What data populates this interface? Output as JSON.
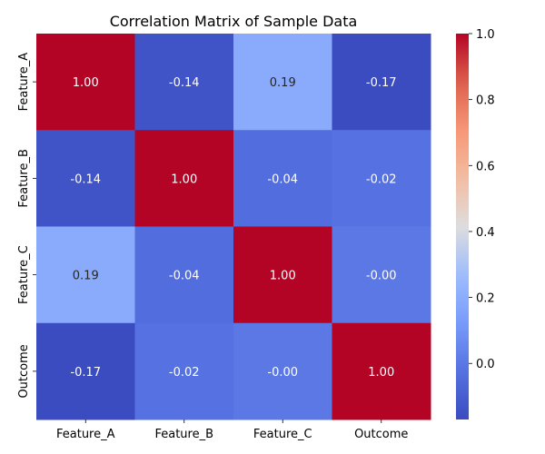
{
  "chart_data": {
    "type": "heatmap",
    "title": "Correlation Matrix of Sample Data",
    "xlabel": "",
    "ylabel": "",
    "x_categories": [
      "Feature_A",
      "Feature_B",
      "Feature_C",
      "Outcome"
    ],
    "y_categories": [
      "Feature_A",
      "Feature_B",
      "Feature_C",
      "Outcome"
    ],
    "values": [
      [
        1.0,
        -0.14,
        0.19,
        -0.17
      ],
      [
        -0.14,
        1.0,
        -0.04,
        -0.02
      ],
      [
        0.19,
        -0.04,
        1.0,
        -0.0
      ],
      [
        -0.17,
        -0.02,
        -0.0,
        1.0
      ]
    ],
    "annotations": [
      [
        "1.00",
        "-0.14",
        "0.19",
        "-0.17"
      ],
      [
        "-0.14",
        "1.00",
        "-0.04",
        "-0.02"
      ],
      [
        "0.19",
        "-0.04",
        "1.00",
        "-0.00"
      ],
      [
        "-0.17",
        "-0.02",
        "-0.00",
        "1.00"
      ]
    ],
    "colormap": "coolwarm",
    "colorbar": {
      "range": [
        -0.17,
        1.0
      ],
      "ticks": [
        0.0,
        0.2,
        0.4,
        0.6,
        0.8,
        1.0
      ],
      "tick_labels": [
        "0.0",
        "0.2",
        "0.4",
        "0.6",
        "0.8",
        "1.0"
      ]
    },
    "grid": false,
    "legend": "colorbar-right"
  }
}
